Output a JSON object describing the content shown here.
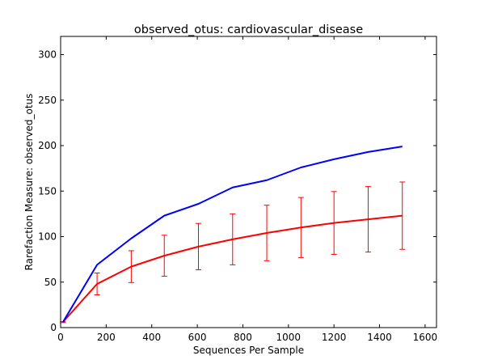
{
  "chart_data": {
    "type": "line",
    "title": "observed_otus: cardiovascular_disease",
    "xlabel": "Sequences Per Sample",
    "ylabel": "Rarefaction Measure: observed_otus",
    "xlim": [
      0,
      1650
    ],
    "ylim": [
      0,
      320
    ],
    "xticks": [
      0,
      200,
      400,
      600,
      800,
      1000,
      1200,
      1400,
      1600
    ],
    "yticks": [
      0,
      50,
      100,
      150,
      200,
      250,
      300
    ],
    "grid": false,
    "series": [
      {
        "color": "#0000ff",
        "x": [
          10,
          160,
          310,
          455,
          605,
          755,
          905,
          1055,
          1200,
          1350,
          1500
        ],
        "y": [
          6,
          69,
          98,
          123,
          136,
          154,
          162,
          176,
          185,
          193,
          199
        ],
        "error": null
      },
      {
        "color": "#ff0000",
        "x": [
          10,
          160,
          310,
          455,
          605,
          755,
          905,
          1055,
          1200,
          1350,
          1500
        ],
        "y": [
          6,
          48,
          67,
          79,
          89,
          97,
          104,
          110,
          115,
          119,
          123
        ],
        "error": [
          0.5,
          12,
          17.5,
          22.5,
          25.5,
          28,
          30.5,
          33,
          34.5,
          36,
          37
        ]
      }
    ]
  }
}
